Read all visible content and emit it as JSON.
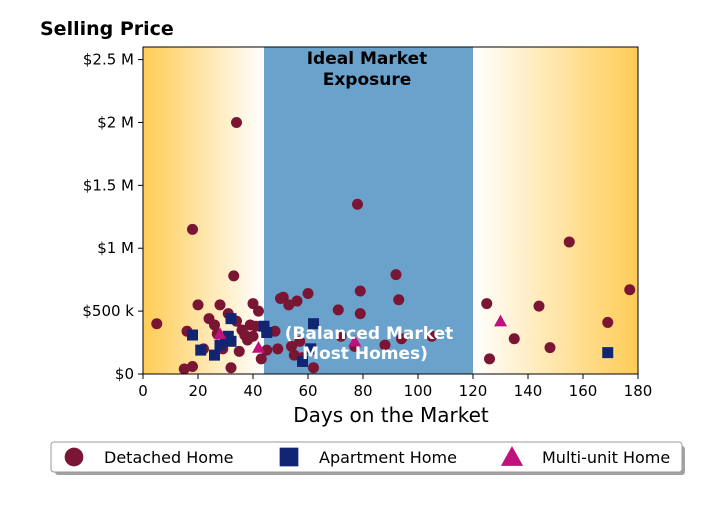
{
  "chart_data": {
    "type": "scatter",
    "ylabel": "Selling Price",
    "xlabel": "Days on the Market",
    "xlim": [
      0,
      180
    ],
    "ylim": [
      0,
      2600000
    ],
    "x_ticks": [
      0,
      20,
      40,
      60,
      80,
      100,
      120,
      140,
      160,
      180
    ],
    "x_tick_labels": [
      "0",
      "20",
      "40",
      "60",
      "80",
      "100",
      "120",
      "140",
      "160",
      "180"
    ],
    "y_ticks": [
      0,
      500000,
      1000000,
      1500000,
      2000000,
      2500000
    ],
    "y_tick_labels": [
      "$0",
      "$500 k",
      "$1 M",
      "$1.5 M",
      "$2 M",
      "$2.5 M"
    ],
    "grid": false,
    "legend_position": "bottom",
    "zones": {
      "left_gradient": {
        "from": 0,
        "to": 44
      },
      "ideal": {
        "from": 44,
        "to": 120,
        "color": "#6aa2cc"
      },
      "right_gradient": {
        "from": 120,
        "to": 180
      },
      "gradient_color": "#ffcc55"
    },
    "annotations": [
      {
        "text_lines": [
          "Ideal Market",
          "Exposure"
        ],
        "color": "#000000"
      },
      {
        "text_lines": [
          "(Balanced Market",
          "Most Homes)"
        ],
        "color": "#ffffff"
      }
    ],
    "series": [
      {
        "name": "Detached Home",
        "marker": "circle",
        "color": "#7a1533",
        "points": [
          [
            5,
            400000
          ],
          [
            16,
            340000
          ],
          [
            15,
            40000
          ],
          [
            18,
            60000
          ],
          [
            18,
            1150000
          ],
          [
            20,
            550000
          ],
          [
            22,
            200000
          ],
          [
            24,
            440000
          ],
          [
            26,
            390000
          ],
          [
            27,
            320000
          ],
          [
            28,
            550000
          ],
          [
            29,
            200000
          ],
          [
            30,
            280000
          ],
          [
            31,
            480000
          ],
          [
            32,
            50000
          ],
          [
            33,
            780000
          ],
          [
            34,
            2000000
          ],
          [
            34,
            420000
          ],
          [
            35,
            180000
          ],
          [
            36,
            350000
          ],
          [
            37,
            310000
          ],
          [
            38,
            270000
          ],
          [
            39,
            390000
          ],
          [
            40,
            300000
          ],
          [
            40,
            560000
          ],
          [
            41,
            380000
          ],
          [
            42,
            500000
          ],
          [
            43,
            120000
          ],
          [
            45,
            190000
          ],
          [
            48,
            340000
          ],
          [
            49,
            200000
          ],
          [
            50,
            600000
          ],
          [
            51,
            610000
          ],
          [
            53,
            550000
          ],
          [
            54,
            220000
          ],
          [
            55,
            150000
          ],
          [
            56,
            580000
          ],
          [
            57,
            260000
          ],
          [
            58,
            130000
          ],
          [
            60,
            640000
          ],
          [
            62,
            50000
          ],
          [
            71,
            510000
          ],
          [
            72,
            300000
          ],
          [
            77,
            220000
          ],
          [
            78,
            1350000
          ],
          [
            79,
            660000
          ],
          [
            79,
            480000
          ],
          [
            88,
            230000
          ],
          [
            92,
            790000
          ],
          [
            93,
            590000
          ],
          [
            94,
            280000
          ],
          [
            105,
            300000
          ],
          [
            125,
            560000
          ],
          [
            126,
            120000
          ],
          [
            135,
            280000
          ],
          [
            144,
            540000
          ],
          [
            148,
            210000
          ],
          [
            155,
            1050000
          ],
          [
            169,
            410000
          ],
          [
            177,
            670000
          ]
        ]
      },
      {
        "name": "Apartment Home",
        "marker": "square",
        "color": "#122572",
        "points": [
          [
            18,
            310000
          ],
          [
            21,
            190000
          ],
          [
            26,
            150000
          ],
          [
            28,
            230000
          ],
          [
            31,
            300000
          ],
          [
            32,
            260000
          ],
          [
            32,
            440000
          ],
          [
            44,
            380000
          ],
          [
            45,
            330000
          ],
          [
            58,
            100000
          ],
          [
            61,
            200000
          ],
          [
            62,
            400000
          ],
          [
            169,
            170000
          ]
        ]
      },
      {
        "name": "Multi-unit Home",
        "marker": "triangle",
        "color": "#c0107c",
        "points": [
          [
            28,
            320000
          ],
          [
            42,
            210000
          ],
          [
            77,
            260000
          ],
          [
            130,
            420000
          ]
        ]
      }
    ]
  }
}
